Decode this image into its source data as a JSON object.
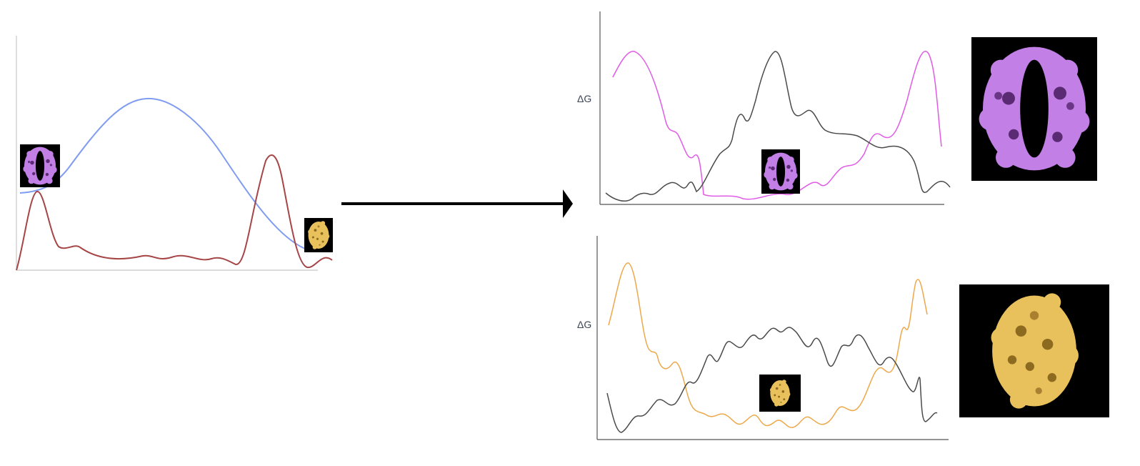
{
  "top_panel": {
    "ylabel": "ΔG"
  },
  "bottom_panel": {
    "ylabel": "ΔG"
  },
  "colors": {
    "background": "#ffffff",
    "axis": "#9a9a9a",
    "arrow": "#000000",
    "blue_curve": "#7f9cf0",
    "red_curve": "#a64545",
    "magenta_curve": "#e05be6",
    "black_curve": "#4a4a4a",
    "orange_curve": "#eda84a",
    "purple_structure": "#c27fe6",
    "gold_structure": "#e8c15c",
    "thumbnail_bg": "#000000"
  },
  "icons": {
    "purple_structure": "purple-protein-structure-icon",
    "gold_structure": "gold-protein-structure-icon",
    "arrow": "right-arrow-icon"
  }
}
